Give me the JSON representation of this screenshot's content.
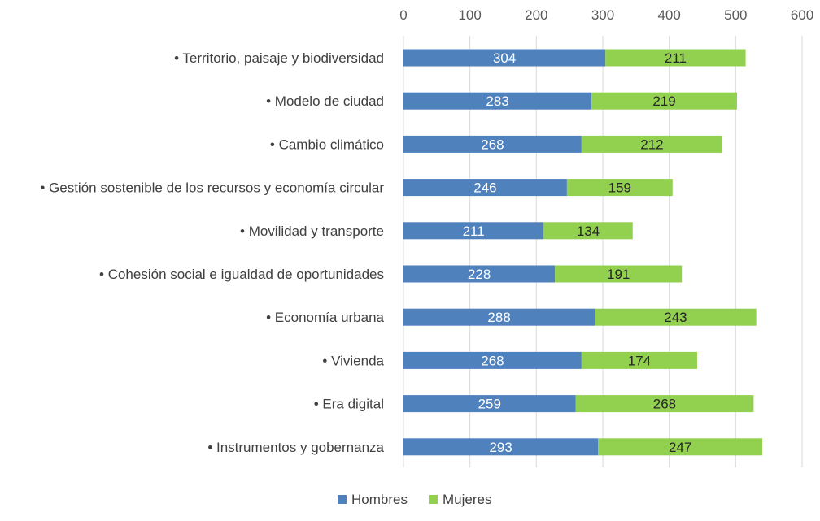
{
  "chart_data": {
    "type": "bar",
    "orientation": "horizontal",
    "stacked": true,
    "categories": [
      "• Territorio, paisaje y biodiversidad",
      "• Modelo de ciudad",
      "• Cambio climático",
      "• Gestión sostenible de los recursos y economía circular",
      "• Movilidad y transporte",
      "• Cohesión social e igualdad de oportunidades",
      "• Economía urbana",
      "• Vivienda",
      "• Era digital",
      "• Instrumentos y gobernanza"
    ],
    "series": [
      {
        "name": "Hombres",
        "color": "#4f81bd",
        "values": [
          304,
          283,
          268,
          246,
          211,
          228,
          288,
          268,
          259,
          293
        ]
      },
      {
        "name": "Mujeres",
        "color": "#92d050",
        "values": [
          211,
          219,
          212,
          159,
          134,
          191,
          243,
          174,
          268,
          247
        ]
      }
    ],
    "xlim": [
      0,
      600
    ],
    "xticks": [
      "0",
      "100",
      "200",
      "300",
      "400",
      "500",
      "600"
    ],
    "axis_position": "top",
    "grid": true,
    "legend_position": "bottom",
    "data_labels": true
  }
}
